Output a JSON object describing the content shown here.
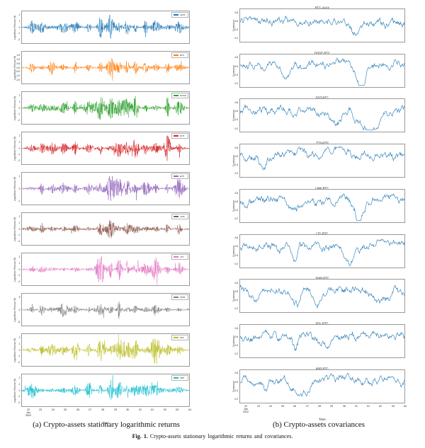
{
  "figure": {
    "panel_a_caption": "(a) Crypto-assets stationary logarithmic returns",
    "panel_b_caption": "(b) Crypto-assets covariances",
    "fig_label": "Fig. 1.",
    "fig_caption": "Crypto-assets stationary logarithmic returns and covariances."
  },
  "chart_data": [
    {
      "panel": "a",
      "type": "line",
      "description": "Ten stacked subplots of high-frequency stationary logarithmic returns (%) per crypto-asset; volatility-clustered noise centered on 0.",
      "xlabel": "Time",
      "ylabel": "Logarithmic Returns (%)",
      "grid": false,
      "legend_position": "upper right",
      "xticks": [
        "22\nJan\n2022",
        "23",
        "24",
        "25",
        "26",
        "27",
        "28",
        "29",
        "30",
        "31",
        "01",
        "02",
        "03",
        "04"
      ],
      "subplots": [
        {
          "label": "AVAX",
          "color": "#1f77b4",
          "yticks": [
            "2",
            "1",
            "0",
            "-1",
            "-2"
          ],
          "ylim": [
            -2.5,
            2.5
          ]
        },
        {
          "label": "BTC",
          "color": "#ff7f0e",
          "yticks": [
            "1.5",
            "1.0",
            "0.5",
            "0.0",
            "-0.5",
            "-1.0",
            "-1.5"
          ],
          "ylim": [
            -1.8,
            1.8
          ]
        },
        {
          "label": "DOGE",
          "color": "#2ca02c",
          "yticks": [
            "2",
            "1",
            "0",
            "-1",
            "-2"
          ],
          "ylim": [
            -2.5,
            2.5
          ]
        },
        {
          "label": "DOT",
          "color": "#d62728",
          "yticks": [
            "2",
            "1",
            "0",
            "-1",
            "-2"
          ],
          "ylim": [
            -2.5,
            2.5
          ]
        },
        {
          "label": "ETH",
          "color": "#9467bd",
          "yticks": [
            "1",
            "0",
            "-1"
          ],
          "ylim": [
            -1.5,
            1.5
          ]
        },
        {
          "label": "LINK",
          "color": "#8c564b",
          "yticks": [
            "2",
            "1",
            "0",
            "-1",
            "-2"
          ],
          "ylim": [
            -2.5,
            2.5
          ]
        },
        {
          "label": "LTC",
          "color": "#e377c2",
          "yticks": [
            "2",
            "1",
            "0",
            "-1",
            "-2"
          ],
          "ylim": [
            -2.5,
            2.5
          ]
        },
        {
          "label": "SHIB",
          "color": "#7f7f7f",
          "yticks": [
            "5",
            "0",
            "-5"
          ],
          "ylim": [
            -7,
            7
          ]
        },
        {
          "label": "SOL",
          "color": "#bcbd22",
          "yticks": [
            "2",
            "1",
            "0",
            "-1",
            "-2"
          ],
          "ylim": [
            -2.5,
            2.5
          ]
        },
        {
          "label": "XRP",
          "color": "#17becf",
          "yticks": [
            "2",
            "1",
            "0",
            "-1",
            "-2"
          ],
          "ylim": [
            -2.5,
            2.5
          ]
        }
      ]
    },
    {
      "panel": "b",
      "type": "line",
      "description": "Nine stacked subplots of rolling covariance of each crypto-asset with BTC; wandering series mostly between 0.2 and 0.8 with sharp downward dips.",
      "xlabel": "Time",
      "ylabel": "Covariance",
      "grid": false,
      "line_color": "#1f77b4",
      "xticks": [
        "22\nJan\n2022",
        "23",
        "24",
        "25",
        "26",
        "27",
        "28",
        "29",
        "30",
        "31",
        "01",
        "02",
        "03",
        "04"
      ],
      "subplots": [
        {
          "title": "BTC-AVAX",
          "yticks": [
            "0.8",
            "0.6",
            "0.4",
            "0.2"
          ],
          "ylim": [
            0,
            1
          ]
        },
        {
          "title": "DOGE-BTC",
          "yticks": [
            "0.8",
            "0.6",
            "0.4",
            "0.2"
          ],
          "ylim": [
            0,
            1
          ]
        },
        {
          "title": "DOT-BTC",
          "yticks": [
            "0.8",
            "0.6",
            "0.4",
            "0.2"
          ],
          "ylim": [
            0,
            1
          ]
        },
        {
          "title": "ETH-BTC",
          "yticks": [
            "0.8",
            "0.6",
            "0.4",
            "0.2"
          ],
          "ylim": [
            0,
            1
          ]
        },
        {
          "title": "LINK-BTC",
          "yticks": [
            "0.8",
            "0.6",
            "0.4",
            "0.2"
          ],
          "ylim": [
            0,
            1
          ]
        },
        {
          "title": "LTC-BTC",
          "yticks": [
            "0.8",
            "0.6",
            "0.4",
            "0.2"
          ],
          "ylim": [
            0,
            1
          ]
        },
        {
          "title": "SHIB-BTC",
          "yticks": [
            "0.8",
            "0.6",
            "0.4",
            "0.2"
          ],
          "ylim": [
            0,
            1
          ]
        },
        {
          "title": "SOL-BTC",
          "yticks": [
            "0.8",
            "0.6",
            "0.4",
            "0.2"
          ],
          "ylim": [
            0,
            1
          ]
        },
        {
          "title": "XRP-BTC",
          "yticks": [
            "0.8",
            "0.6",
            "0.4",
            "0.2"
          ],
          "ylim": [
            0,
            1
          ]
        }
      ]
    }
  ]
}
